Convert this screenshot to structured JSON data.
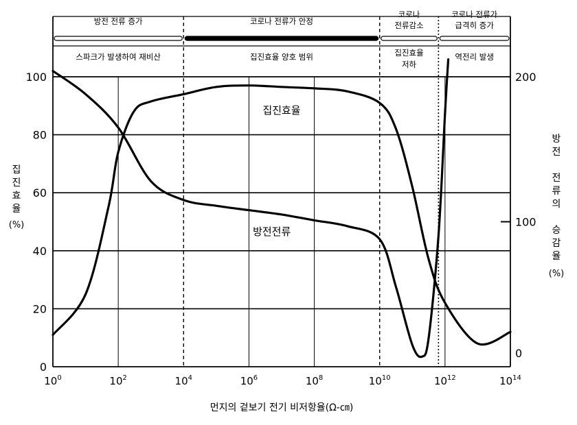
{
  "chart_data": {
    "type": "line",
    "xscale": "log",
    "xlim": [
      1,
      100000000000000
    ],
    "x_ticks": [
      {
        "value": 1,
        "base": "10",
        "exp": "0"
      },
      {
        "value": 100,
        "base": "10",
        "exp": "2"
      },
      {
        "value": 10000,
        "base": "10",
        "exp": "4"
      },
      {
        "value": 1000000,
        "base": "10",
        "exp": "6"
      },
      {
        "value": 100000000,
        "base": "10",
        "exp": "8"
      },
      {
        "value": 10000000000,
        "base": "10",
        "exp": "10"
      },
      {
        "value": 1000000000000,
        "base": "10",
        "exp": "12"
      },
      {
        "value": 100000000000000,
        "base": "10",
        "exp": "14"
      }
    ],
    "xlabel": "먼지의 겉보기 전기 비저항율(Ω-㎝)",
    "left_axis": {
      "label_chars": [
        "집",
        "진",
        "효",
        "율"
      ],
      "unit": "(%)",
      "ylim": [
        0,
        100
      ],
      "ticks": [
        "0",
        "20",
        "40",
        "60",
        "80",
        "100"
      ]
    },
    "right_axis": {
      "label_chars": [
        "방",
        "전",
        "",
        "전",
        "류",
        "의",
        "",
        "승",
        "감",
        "율"
      ],
      "unit": "(%)",
      "ylim": [
        0,
        200
      ],
      "ticks": [
        "0",
        "100",
        "200"
      ]
    },
    "series": [
      {
        "name": "집진효율",
        "axis": "left",
        "points": [
          [
            1,
            11
          ],
          [
            10,
            25
          ],
          [
            50,
            55
          ],
          [
            100,
            74
          ],
          [
            300,
            88
          ],
          [
            1000,
            91.5
          ],
          [
            10000,
            94
          ],
          [
            100000,
            96.5
          ],
          [
            1000000,
            97
          ],
          [
            10000000,
            96.5
          ],
          [
            100000000,
            96
          ],
          [
            1000000000,
            95
          ],
          [
            10000000000,
            91
          ],
          [
            31600000000,
            82
          ],
          [
            100000000000,
            62
          ],
          [
            316000000000,
            37
          ],
          [
            1000000000000,
            22
          ],
          [
            10000000000000,
            8
          ],
          [
            100000000000000,
            12
          ]
        ]
      },
      {
        "name": "방전전류",
        "axis": "right",
        "points": [
          [
            1,
            204
          ],
          [
            10,
            188
          ],
          [
            100,
            165
          ],
          [
            1000,
            128
          ],
          [
            10000,
            115
          ],
          [
            100000,
            111
          ],
          [
            1000000,
            108
          ],
          [
            10000000,
            105
          ],
          [
            100000000,
            101
          ],
          [
            1000000000,
            97
          ],
          [
            10000000000,
            88
          ],
          [
            31600000000,
            55
          ],
          [
            100000000000,
            15
          ],
          [
            200000000000,
            7
          ],
          [
            316000000000,
            20
          ],
          [
            630000000000,
            90
          ],
          [
            1000000000000,
            175
          ],
          [
            1260000000000,
            212
          ]
        ]
      }
    ],
    "regions": [
      {
        "from": 1,
        "to": 10000,
        "current": "방전 전류 증가",
        "efficiency": [
          "스파크가 발생하여 재비산"
        ],
        "bar": "open"
      },
      {
        "from": 10000,
        "to": 10000000000,
        "current": "코로나 전류가 안정",
        "efficiency": [
          "집진효율 양호 범위"
        ],
        "bar": "filled"
      },
      {
        "from": 10000000000,
        "to": 631000000000,
        "current_lines": [
          "코로나",
          "전류감소"
        ],
        "efficiency": [
          "집진효율",
          "저하"
        ],
        "bar": "open"
      },
      {
        "from": 631000000000,
        "to": 100000000000000,
        "current_lines": [
          "코로나 전류가",
          "급격히 증가"
        ],
        "efficiency": [
          "역전리 발생"
        ],
        "bar": "open"
      }
    ]
  }
}
